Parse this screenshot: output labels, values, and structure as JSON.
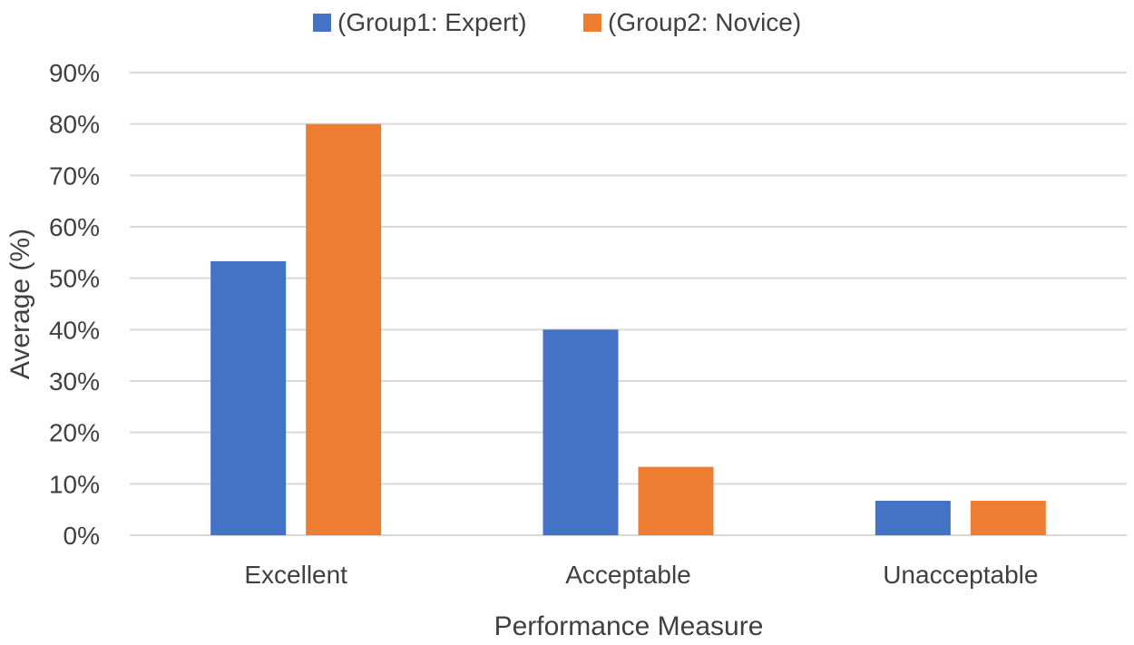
{
  "chart_data": {
    "type": "bar",
    "categories": [
      "Excellent",
      "Acceptable",
      "Unacceptable"
    ],
    "series": [
      {
        "name": "(Group1: Expert)",
        "values": [
          53.3,
          40.0,
          6.7
        ],
        "color": "#4472C4"
      },
      {
        "name": "(Group2: Novice)",
        "values": [
          80.0,
          13.3,
          6.7
        ],
        "color": "#ED7D31"
      }
    ],
    "title": "",
    "xlabel": "Performance Measure",
    "ylabel": "Average (%)",
    "ylim": [
      0,
      90
    ],
    "yticks": [
      "0%",
      "10%",
      "20%",
      "30%",
      "40%",
      "50%",
      "60%",
      "70%",
      "80%",
      "90%"
    ],
    "grid": true,
    "legend_position": "top",
    "gridline_color": "#D9D9D9"
  }
}
